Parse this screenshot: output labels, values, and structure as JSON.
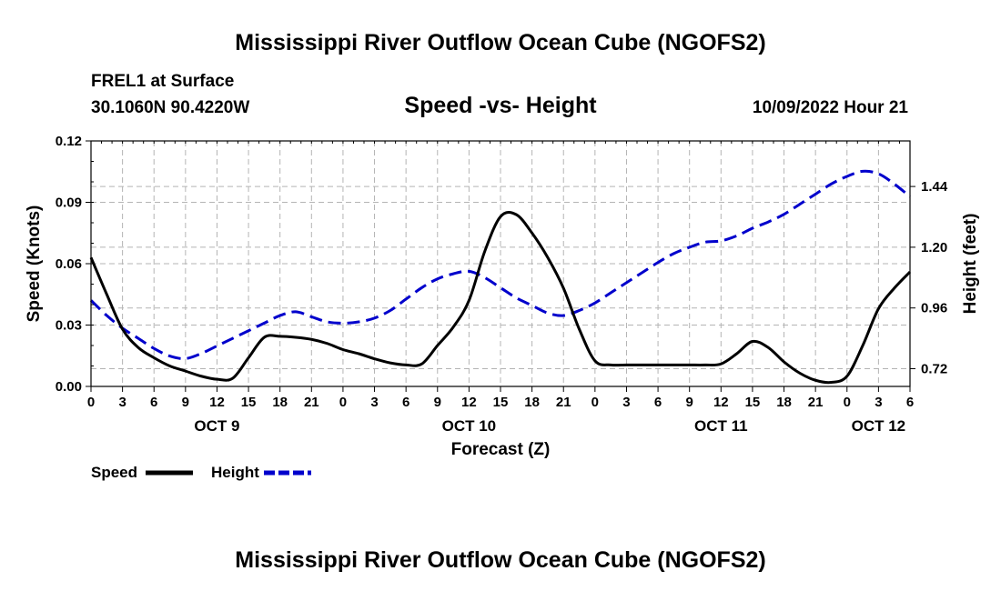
{
  "header": {
    "title": "Mississippi River Outflow Ocean Cube (NGOFS2)",
    "station": "FREL1 at Surface",
    "coords": "30.1060N  90.4220W",
    "subtitle": "Speed -vs- Height",
    "datetime": "10/09/2022 Hour 21"
  },
  "footer": {
    "title": "Mississippi River Outflow Ocean Cube (NGOFS2)"
  },
  "chart_data": {
    "type": "line",
    "title": "Speed -vs- Height",
    "xlabel": "Forecast (Z)",
    "ylabel": "Speed (Knots)",
    "y2label": "Height (feet)",
    "x_range_hours": [
      0,
      78
    ],
    "ylim": [
      0,
      0.12
    ],
    "y2lim": [
      0.65,
      1.62
    ],
    "grid": true,
    "x_ticks": [
      {
        "h": 0,
        "label": "0"
      },
      {
        "h": 3,
        "label": "3"
      },
      {
        "h": 6,
        "label": "6"
      },
      {
        "h": 9,
        "label": "9"
      },
      {
        "h": 12,
        "label": "12"
      },
      {
        "h": 15,
        "label": "15"
      },
      {
        "h": 18,
        "label": "18"
      },
      {
        "h": 21,
        "label": "21"
      },
      {
        "h": 24,
        "label": "0"
      },
      {
        "h": 27,
        "label": "3"
      },
      {
        "h": 30,
        "label": "6"
      },
      {
        "h": 33,
        "label": "9"
      },
      {
        "h": 36,
        "label": "12"
      },
      {
        "h": 39,
        "label": "15"
      },
      {
        "h": 42,
        "label": "18"
      },
      {
        "h": 45,
        "label": "21"
      },
      {
        "h": 48,
        "label": "0"
      },
      {
        "h": 51,
        "label": "3"
      },
      {
        "h": 54,
        "label": "6"
      },
      {
        "h": 57,
        "label": "9"
      },
      {
        "h": 60,
        "label": "12"
      },
      {
        "h": 63,
        "label": "15"
      },
      {
        "h": 66,
        "label": "18"
      },
      {
        "h": 69,
        "label": "21"
      },
      {
        "h": 72,
        "label": "0"
      },
      {
        "h": 75,
        "label": "3"
      },
      {
        "h": 78,
        "label": "6"
      }
    ],
    "date_labels": [
      {
        "h": 12,
        "label": "OCT 9"
      },
      {
        "h": 36,
        "label": "OCT 10"
      },
      {
        "h": 60,
        "label": "OCT 11"
      },
      {
        "h": 75,
        "label": "OCT 12"
      }
    ],
    "y_ticks": [
      "0.00",
      "0.03",
      "0.06",
      "0.09",
      "0.12"
    ],
    "y_tick_values": [
      0,
      0.03,
      0.06,
      0.09,
      0.12
    ],
    "y2_ticks": [
      "0.72",
      "0.96",
      "1.20",
      "1.44"
    ],
    "y2_tick_values": [
      0.72,
      0.96,
      1.2,
      1.44
    ],
    "series": [
      {
        "name": "Speed",
        "axis": "left",
        "color": "#000000",
        "dash": "solid",
        "x": [
          0,
          1.5,
          3,
          4.5,
          6,
          7.5,
          9,
          10.5,
          12,
          13.5,
          15,
          16.5,
          18,
          19.5,
          21,
          22.5,
          24,
          25.5,
          27,
          28.5,
          30,
          31.5,
          33,
          34.5,
          36,
          37.5,
          39,
          40.5,
          42,
          43.5,
          45,
          46.5,
          48,
          49.5,
          51,
          52.5,
          54,
          55.5,
          57,
          58.5,
          60,
          61.5,
          63,
          64.5,
          66,
          67.5,
          69,
          70.5,
          72,
          73.5,
          75,
          76.5,
          78
        ],
        "values": [
          0.063,
          0.045,
          0.028,
          0.019,
          0.014,
          0.01,
          0.0075,
          0.005,
          0.0035,
          0.004,
          0.014,
          0.024,
          0.0245,
          0.024,
          0.023,
          0.021,
          0.018,
          0.016,
          0.0135,
          0.0115,
          0.0105,
          0.011,
          0.02,
          0.029,
          0.042,
          0.066,
          0.083,
          0.084,
          0.075,
          0.063,
          0.048,
          0.028,
          0.0125,
          0.0105,
          0.0105,
          0.0105,
          0.0105,
          0.0105,
          0.0105,
          0.0105,
          0.011,
          0.016,
          0.022,
          0.019,
          0.012,
          0.0065,
          0.003,
          0.002,
          0.005,
          0.02,
          0.038,
          0.048,
          0.056
        ]
      },
      {
        "name": "Height",
        "axis": "right",
        "color": "#0000cc",
        "dash": "dashed",
        "x": [
          0,
          1.5,
          3,
          4.5,
          6,
          7.5,
          9,
          10.5,
          12,
          13.5,
          15,
          16.5,
          18,
          19.5,
          21,
          22.5,
          24,
          25.5,
          27,
          28.5,
          30,
          31.5,
          33,
          34.5,
          36,
          37.5,
          39,
          40.5,
          42,
          43.5,
          45,
          46.5,
          48,
          49.5,
          51,
          52.5,
          54,
          55.5,
          57,
          58.5,
          60,
          61.5,
          63,
          64.5,
          66,
          67.5,
          69,
          70.5,
          72,
          73.5,
          75,
          76.5,
          78
        ],
        "values": [
          0.99,
          0.93,
          0.88,
          0.84,
          0.8,
          0.77,
          0.76,
          0.78,
          0.81,
          0.84,
          0.87,
          0.9,
          0.93,
          0.945,
          0.925,
          0.905,
          0.9,
          0.905,
          0.92,
          0.95,
          0.995,
          1.04,
          1.075,
          1.095,
          1.105,
          1.08,
          1.04,
          1.0,
          0.97,
          0.94,
          0.93,
          0.95,
          0.98,
          1.02,
          1.06,
          1.1,
          1.14,
          1.175,
          1.2,
          1.22,
          1.225,
          1.245,
          1.275,
          1.3,
          1.33,
          1.37,
          1.41,
          1.45,
          1.48,
          1.5,
          1.49,
          1.45,
          1.4
        ]
      }
    ],
    "legend": {
      "position": "bottom-left",
      "items": [
        {
          "label": "Speed",
          "color": "#000000",
          "dash": "solid"
        },
        {
          "label": "Height",
          "color": "#0000cc",
          "dash": "dashed"
        }
      ]
    }
  }
}
